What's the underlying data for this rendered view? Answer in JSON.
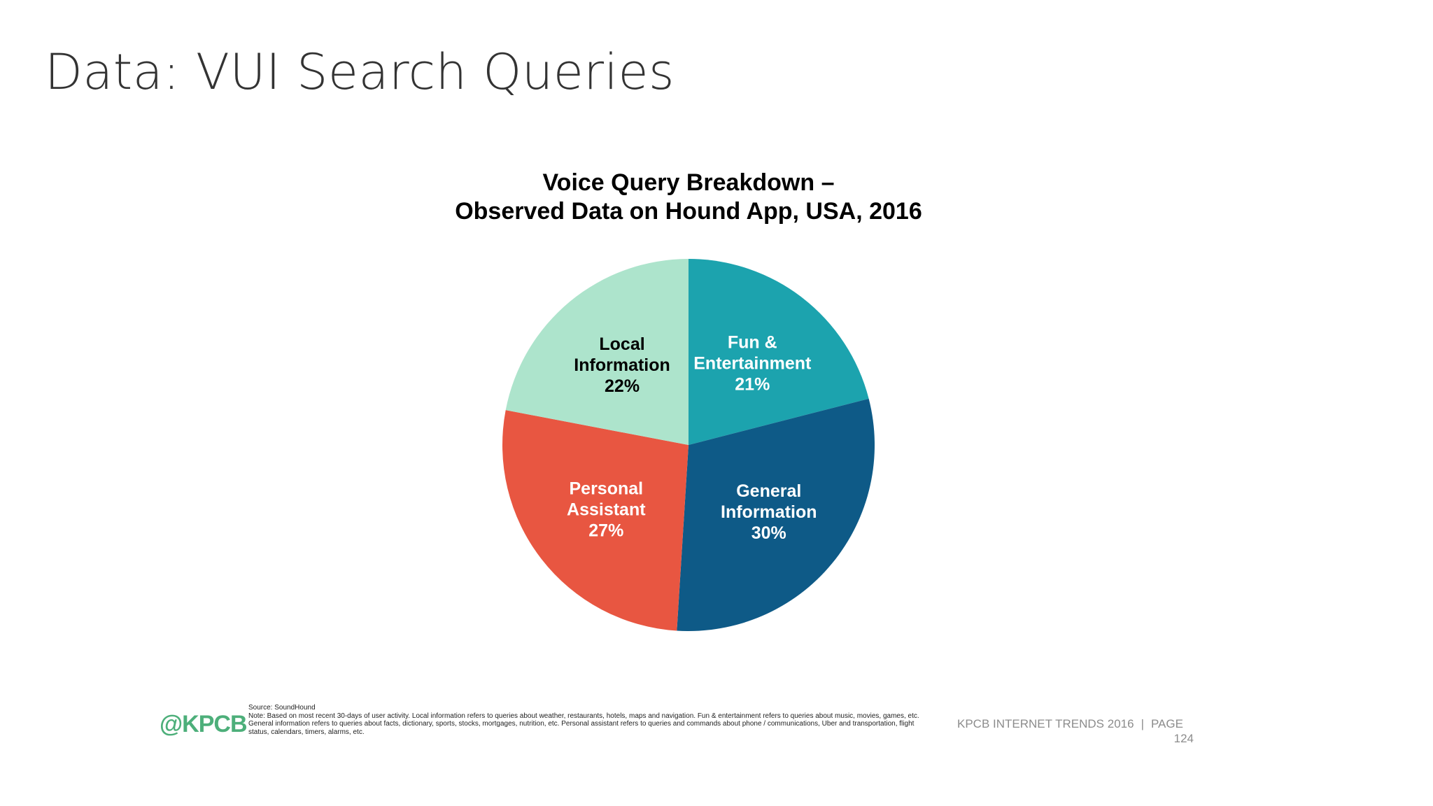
{
  "slide": {
    "title": "Data: VUI Search Queries"
  },
  "chart_data": {
    "type": "pie",
    "title_lines": [
      "Voice Query Breakdown –",
      "Observed Data on Hound App, USA, 2016"
    ],
    "slices": [
      {
        "label_lines": [
          "Fun &",
          "Entertainment"
        ],
        "value": 21,
        "value_label": "21%",
        "color": "#1ca3ae",
        "text_color": "#ffffff"
      },
      {
        "label_lines": [
          "General",
          "Information"
        ],
        "value": 30,
        "value_label": "30%",
        "color": "#0e5a87",
        "text_color": "#ffffff"
      },
      {
        "label_lines": [
          "Personal",
          "Assistant"
        ],
        "value": 27,
        "value_label": "27%",
        "color": "#e85641",
        "text_color": "#ffffff"
      },
      {
        "label_lines": [
          "Local",
          "Information"
        ],
        "value": 22,
        "value_label": "22%",
        "color": "#ade4cc",
        "text_color": "#000000"
      }
    ],
    "start": "12 o'clock",
    "direction": "clockwise",
    "legend": "none"
  },
  "footer": {
    "logo": "@KPCB",
    "source": "Source: SoundHound",
    "note": "Note: Based on most recent 30-days of user activity. Local information refers to queries about weather, restaurants, hotels, maps and navigation. Fun & entertainment refers to queries about music, movies, games, etc. General information refers to queries about facts, dictionary, sports, stocks, mortgages, nutrition, etc. Personal assistant refers to queries and commands about phone / communications, Uber and transportation, flight status, calendars, timers, alarms, etc.",
    "report": "KPCB INTERNET TRENDS 2016",
    "separator": "|",
    "page_label": "PAGE",
    "page_number": "124"
  }
}
